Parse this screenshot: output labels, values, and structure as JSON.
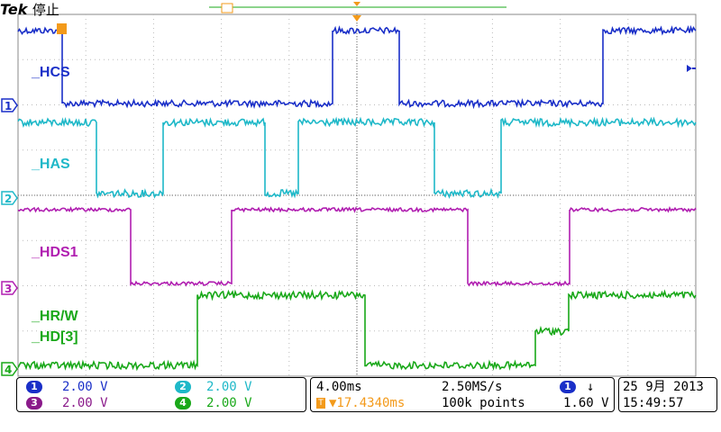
{
  "header": {
    "brand": "Tek",
    "status": "停止"
  },
  "markers": {
    "trigger_pos": "T",
    "channels": [
      "1",
      "2",
      "3",
      "4"
    ]
  },
  "channels": [
    {
      "label": "_HCS",
      "color": "#1a2fc8"
    },
    {
      "label": "_HAS",
      "color": "#1eb8c8"
    },
    {
      "label": "_HDS1",
      "color": "#b01eb0"
    },
    {
      "label": "_HR/W",
      "color": "#19a819"
    },
    {
      "label": "_HD[3]",
      "color": "#19a819"
    }
  ],
  "readout": {
    "ch1": {
      "num": "1",
      "value": "2.00 V",
      "color": "#1a2fc8"
    },
    "ch2": {
      "num": "2",
      "value": "2.00 V",
      "color": "#1eb8c8"
    },
    "ch3": {
      "num": "3",
      "value": "2.00 V",
      "color": "#8a1a8a"
    },
    "ch4": {
      "num": "4",
      "value": "2.00 V",
      "color": "#19a819"
    },
    "timebase": "4.00ms",
    "sample_rate": "2.50MS/s",
    "trigger_delay": "▼17.4340ms",
    "record_length": "100k points",
    "trigger_source": "1",
    "trigger_slope": "↓",
    "trigger_level": "1.60 V",
    "date": "25 9月  2013",
    "time": "15:49:57"
  }
}
